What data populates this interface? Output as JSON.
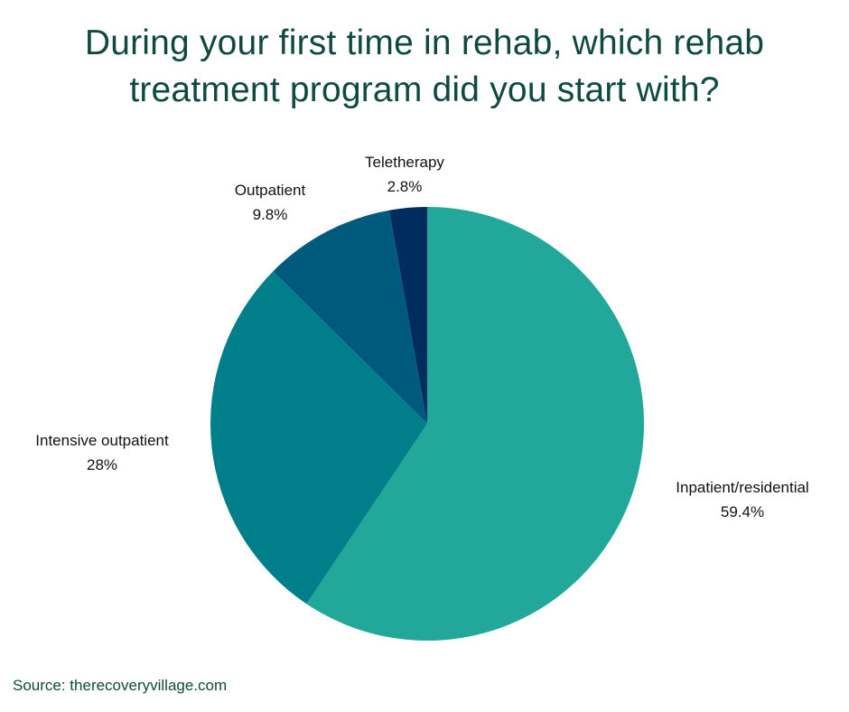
{
  "chart_data": {
    "type": "pie",
    "title_lines": [
      "During your first time in rehab, which rehab",
      "treatment program did you start with?"
    ],
    "slices": [
      {
        "label": "Inpatient/residential",
        "value": 59.4,
        "value_label": "59.4%",
        "color": "#21a89a"
      },
      {
        "label": "Intensive outpatient",
        "value": 28,
        "value_label": "28%",
        "color": "#007f8a"
      },
      {
        "label": "Outpatient",
        "value": 9.8,
        "value_label": "9.8%",
        "color": "#005a7e"
      },
      {
        "label": "Teletherapy",
        "value": 2.8,
        "value_label": "2.8%",
        "color": "#002c5e"
      }
    ],
    "start": "12 o'clock",
    "direction": "clockwise"
  },
  "source": "Source: therecoveryvillage.com"
}
